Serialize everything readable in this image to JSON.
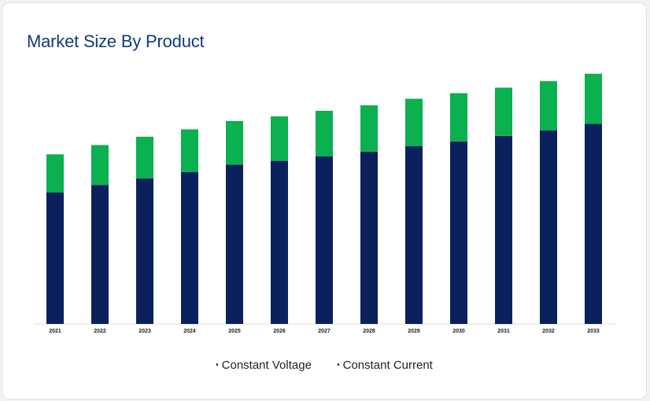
{
  "title": "Market Size By Product",
  "colors": {
    "constant_voltage": "#0b215e",
    "constant_current": "#0bb04f",
    "axis": "#dddddd"
  },
  "legend": {
    "bullet": "•",
    "items": [
      "Constant Voltage",
      "Constant Current"
    ]
  },
  "chart_data": {
    "type": "bar",
    "stacked": true,
    "categories": [
      "2021",
      "2022",
      "2023",
      "2024",
      "2025",
      "2026",
      "2027",
      "2028",
      "2029",
      "2030",
      "2031",
      "2032",
      "2033"
    ],
    "series": [
      {
        "name": "Constant Voltage",
        "values": [
          142,
          150,
          157,
          164,
          172,
          176,
          181,
          186,
          192,
          197,
          203,
          209,
          216
        ]
      },
      {
        "name": "Constant Current",
        "values": [
          41,
          43,
          45,
          46,
          47,
          48,
          49,
          50,
          51,
          52,
          52,
          53,
          54
        ]
      }
    ],
    "title": "Market Size By Product",
    "xlabel": "",
    "ylabel": "",
    "ylim": [
      0,
      280
    ],
    "grid": false,
    "legend_position": "bottom"
  }
}
